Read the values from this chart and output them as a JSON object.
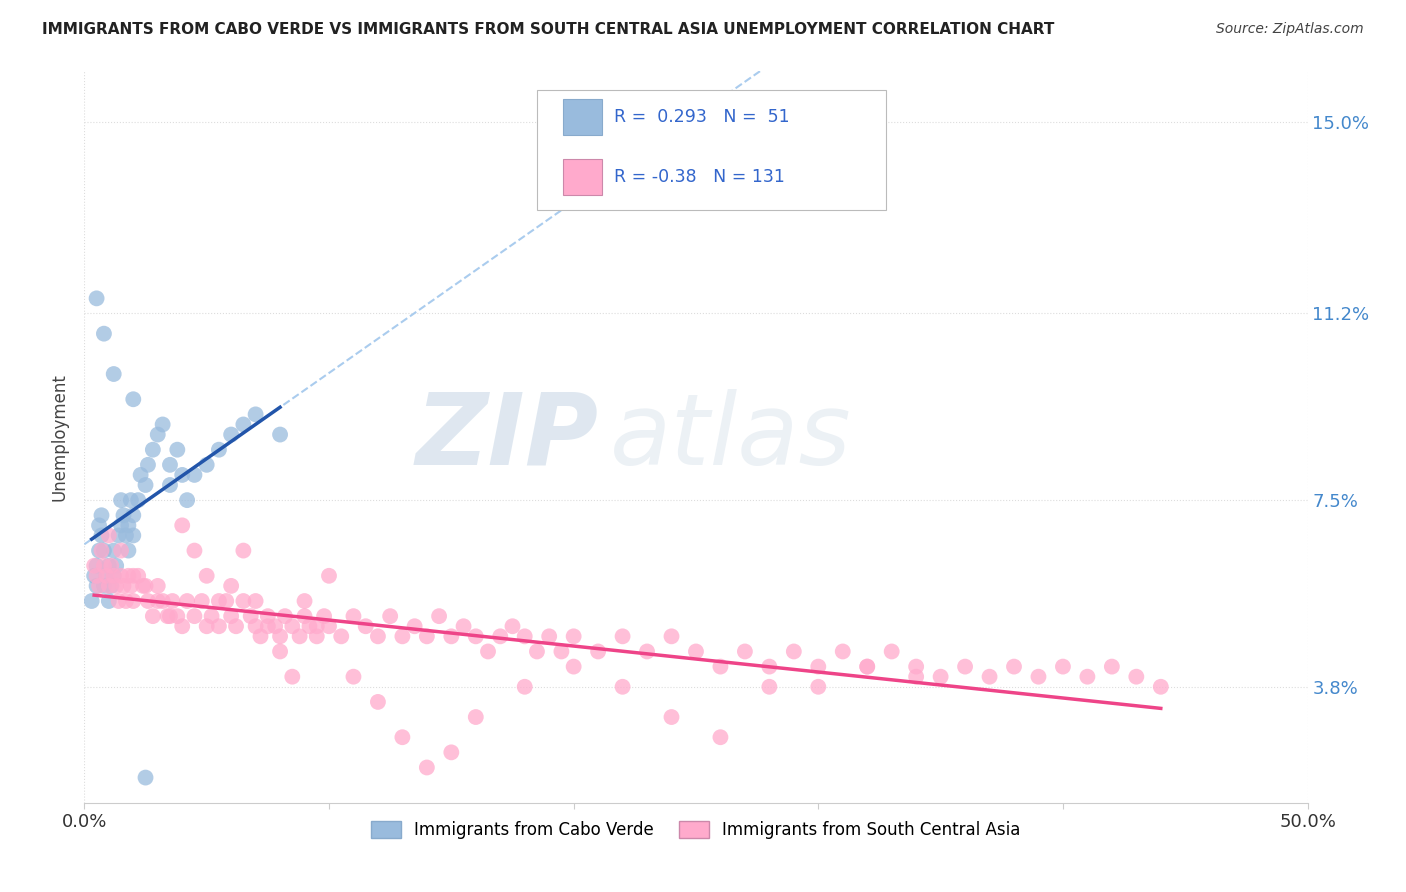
{
  "title": "IMMIGRANTS FROM CABO VERDE VS IMMIGRANTS FROM SOUTH CENTRAL ASIA UNEMPLOYMENT CORRELATION CHART",
  "source": "Source: ZipAtlas.com",
  "ylabel": "Unemployment",
  "xlim": [
    0.0,
    0.5
  ],
  "ylim": [
    0.015,
    0.16
  ],
  "yticks": [
    0.038,
    0.075,
    0.112,
    0.15
  ],
  "ytick_labels": [
    "3.8%",
    "7.5%",
    "11.2%",
    "15.0%"
  ],
  "xticks": [
    0.0,
    0.1,
    0.2,
    0.3,
    0.4,
    0.5
  ],
  "xtick_labels": [
    "0.0%",
    "",
    "",
    "",
    "",
    "50.0%"
  ],
  "blue_R": 0.293,
  "blue_N": 51,
  "pink_R": -0.38,
  "pink_N": 131,
  "blue_dot_color": "#99BBDD",
  "pink_dot_color": "#FFAACC",
  "blue_label": "Immigrants from Cabo Verde",
  "pink_label": "Immigrants from South Central Asia",
  "watermark_ZIP": "ZIP",
  "watermark_atlas": "atlas",
  "background_color": "#FFFFFF",
  "grid_color": "#DDDDDD",
  "blue_line_color": "#2255AA",
  "pink_line_color": "#EE4488",
  "dashed_line_color": "#AACCEE",
  "legend_edge_color": "#BBBBBB",
  "blue_scatter_x": [
    0.003,
    0.004,
    0.005,
    0.005,
    0.006,
    0.006,
    0.007,
    0.007,
    0.008,
    0.008,
    0.009,
    0.01,
    0.01,
    0.011,
    0.012,
    0.012,
    0.013,
    0.014,
    0.015,
    0.015,
    0.016,
    0.017,
    0.018,
    0.018,
    0.019,
    0.02,
    0.02,
    0.022,
    0.023,
    0.025,
    0.026,
    0.028,
    0.03,
    0.032,
    0.035,
    0.038,
    0.04,
    0.042,
    0.045,
    0.05,
    0.055,
    0.06,
    0.065,
    0.07,
    0.08,
    0.005,
    0.008,
    0.012,
    0.02,
    0.035,
    0.025
  ],
  "blue_scatter_y": [
    0.055,
    0.06,
    0.058,
    0.062,
    0.065,
    0.07,
    0.068,
    0.072,
    0.065,
    0.058,
    0.06,
    0.055,
    0.062,
    0.058,
    0.06,
    0.065,
    0.062,
    0.068,
    0.07,
    0.075,
    0.072,
    0.068,
    0.065,
    0.07,
    0.075,
    0.072,
    0.068,
    0.075,
    0.08,
    0.078,
    0.082,
    0.085,
    0.088,
    0.09,
    0.082,
    0.085,
    0.08,
    0.075,
    0.08,
    0.082,
    0.085,
    0.088,
    0.09,
    0.092,
    0.088,
    0.115,
    0.108,
    0.1,
    0.095,
    0.078,
    0.02
  ],
  "pink_scatter_x": [
    0.004,
    0.005,
    0.006,
    0.007,
    0.008,
    0.009,
    0.01,
    0.011,
    0.012,
    0.013,
    0.014,
    0.015,
    0.016,
    0.017,
    0.018,
    0.019,
    0.02,
    0.022,
    0.024,
    0.026,
    0.028,
    0.03,
    0.032,
    0.034,
    0.036,
    0.038,
    0.04,
    0.042,
    0.045,
    0.048,
    0.05,
    0.052,
    0.055,
    0.058,
    0.06,
    0.062,
    0.065,
    0.068,
    0.07,
    0.072,
    0.075,
    0.078,
    0.08,
    0.082,
    0.085,
    0.088,
    0.09,
    0.092,
    0.095,
    0.098,
    0.1,
    0.105,
    0.11,
    0.115,
    0.12,
    0.125,
    0.13,
    0.135,
    0.14,
    0.145,
    0.15,
    0.155,
    0.16,
    0.165,
    0.17,
    0.175,
    0.18,
    0.185,
    0.19,
    0.195,
    0.2,
    0.21,
    0.22,
    0.23,
    0.24,
    0.25,
    0.26,
    0.27,
    0.28,
    0.29,
    0.3,
    0.31,
    0.32,
    0.33,
    0.34,
    0.35,
    0.36,
    0.37,
    0.38,
    0.39,
    0.4,
    0.41,
    0.42,
    0.43,
    0.44,
    0.01,
    0.015,
    0.02,
    0.025,
    0.03,
    0.035,
    0.04,
    0.045,
    0.05,
    0.055,
    0.06,
    0.065,
    0.07,
    0.075,
    0.08,
    0.085,
    0.09,
    0.095,
    0.1,
    0.11,
    0.12,
    0.13,
    0.14,
    0.15,
    0.16,
    0.18,
    0.2,
    0.22,
    0.24,
    0.26,
    0.28,
    0.3,
    0.32,
    0.34
  ],
  "pink_scatter_y": [
    0.062,
    0.06,
    0.058,
    0.065,
    0.062,
    0.06,
    0.058,
    0.062,
    0.06,
    0.058,
    0.055,
    0.06,
    0.058,
    0.055,
    0.06,
    0.058,
    0.055,
    0.06,
    0.058,
    0.055,
    0.052,
    0.058,
    0.055,
    0.052,
    0.055,
    0.052,
    0.05,
    0.055,
    0.052,
    0.055,
    0.05,
    0.052,
    0.05,
    0.055,
    0.052,
    0.05,
    0.055,
    0.052,
    0.05,
    0.048,
    0.052,
    0.05,
    0.048,
    0.052,
    0.05,
    0.048,
    0.052,
    0.05,
    0.048,
    0.052,
    0.05,
    0.048,
    0.052,
    0.05,
    0.048,
    0.052,
    0.048,
    0.05,
    0.048,
    0.052,
    0.048,
    0.05,
    0.048,
    0.045,
    0.048,
    0.05,
    0.048,
    0.045,
    0.048,
    0.045,
    0.048,
    0.045,
    0.048,
    0.045,
    0.048,
    0.045,
    0.042,
    0.045,
    0.042,
    0.045,
    0.042,
    0.045,
    0.042,
    0.045,
    0.042,
    0.04,
    0.042,
    0.04,
    0.042,
    0.04,
    0.042,
    0.04,
    0.042,
    0.04,
    0.038,
    0.068,
    0.065,
    0.06,
    0.058,
    0.055,
    0.052,
    0.07,
    0.065,
    0.06,
    0.055,
    0.058,
    0.065,
    0.055,
    0.05,
    0.045,
    0.04,
    0.055,
    0.05,
    0.06,
    0.04,
    0.035,
    0.028,
    0.022,
    0.025,
    0.032,
    0.038,
    0.042,
    0.038,
    0.032,
    0.028,
    0.038,
    0.038,
    0.042,
    0.04
  ]
}
